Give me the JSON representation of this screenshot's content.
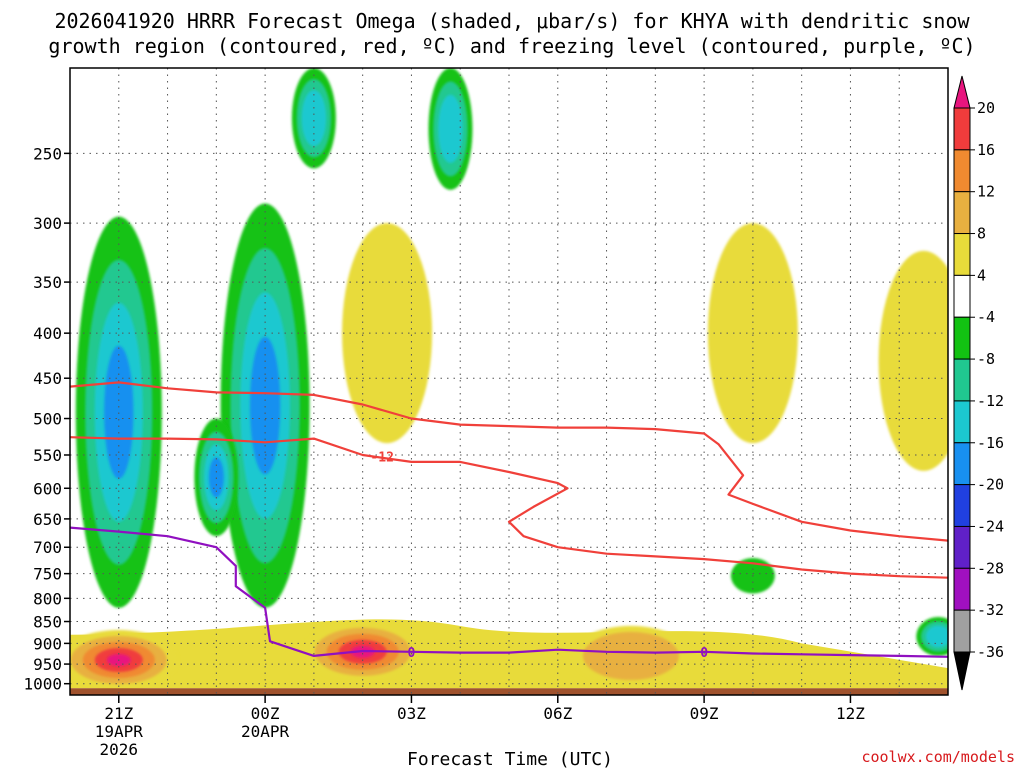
{
  "chart_data": {
    "type": "time-height cross section (filled contours + line contours)",
    "title_line1": "2026041920 HRRR Forecast Omega (shaded, μbar/s) for KHYA with dendritic snow",
    "title_line2": "growth region (contoured, red, ºC) and freezing level (contoured, purple, ºC)",
    "xlabel": "Forecast Time (UTC)",
    "ylabel": "",
    "credit": "coolwx.com/models",
    "x_range_hours": [
      -1,
      17
    ],
    "y_range_hpa": [
      1030,
      200
    ],
    "y_scale": "log-pressure",
    "x_ticks": [
      {
        "hour": 0,
        "label": "21Z",
        "date1": "19APR",
        "date2": "2026"
      },
      {
        "hour": 3,
        "label": "00Z",
        "date1": "20APR",
        "date2": ""
      },
      {
        "hour": 6,
        "label": "03Z",
        "date1": "",
        "date2": ""
      },
      {
        "hour": 9,
        "label": "06Z",
        "date1": "",
        "date2": ""
      },
      {
        "hour": 12,
        "label": "09Z",
        "date1": "",
        "date2": ""
      },
      {
        "hour": 15,
        "label": "12Z",
        "date1": "",
        "date2": ""
      }
    ],
    "y_ticks": [
      250,
      300,
      350,
      400,
      450,
      500,
      550,
      600,
      650,
      700,
      750,
      800,
      850,
      900,
      950,
      1000
    ],
    "colorbar": {
      "labels": [
        "20",
        "16",
        "12",
        "8",
        "4",
        "-4",
        "-8",
        "-12",
        "-16",
        "-20",
        "-24",
        "-28",
        "-32",
        "-36"
      ],
      "bins": [
        {
          "range": ">20",
          "color": "#e8157e"
        },
        {
          "range": "16 to 20",
          "color": "#f03c3c"
        },
        {
          "range": "12 to 16",
          "color": "#f08a30"
        },
        {
          "range": "8 to 12",
          "color": "#e8b040"
        },
        {
          "range": "4 to 8",
          "color": "#e8db3a"
        },
        {
          "range": "-4 to 4",
          "color": "#ffffff"
        },
        {
          "range": "-8 to -4",
          "color": "#12c212"
        },
        {
          "range": "-12 to -8",
          "color": "#20c890"
        },
        {
          "range": "-16 to -12",
          "color": "#1cc8d0"
        },
        {
          "range": "-20 to -16",
          "color": "#1890f0"
        },
        {
          "range": "-24 to -20",
          "color": "#2040e0"
        },
        {
          "range": "-28 to -24",
          "color": "#6020c8"
        },
        {
          "range": "-32 to -28",
          "color": "#a010c0"
        },
        {
          "range": "-36 to -32",
          "color": "#a0a0a0"
        },
        {
          "range": "<-36",
          "color": "#000000"
        }
      ]
    },
    "ground_color": "#a0522d",
    "ground_top_hpa": 1012,
    "omega_ascent_areas": [
      {
        "hour": 0.0,
        "p_bottom": 820,
        "p_top": 295,
        "omega_min": -18
      },
      {
        "hour": 3.0,
        "p_bottom": 820,
        "p_top": 285,
        "omega_min": -16
      },
      {
        "hour": 2.0,
        "p_bottom": 680,
        "p_top": 500,
        "omega_min": -18
      },
      {
        "hour": 4.0,
        "p_bottom": 260,
        "p_top": 200,
        "omega_min": -12
      },
      {
        "hour": 6.8,
        "p_bottom": 275,
        "p_top": 200,
        "omega_min": -14
      },
      {
        "hour": 13.0,
        "p_bottom": 790,
        "p_top": 720,
        "omega_min": -6
      },
      {
        "hour": 16.8,
        "p_bottom": 930,
        "p_top": 840,
        "omega_min": -12
      }
    ],
    "omega_descent_areas": [
      {
        "hour": 0.0,
        "p_center": 940,
        "omega_max": 20
      },
      {
        "hour": 5.0,
        "p_center": 920,
        "omega_max": 22
      },
      {
        "hour": 10.5,
        "p_center": 930,
        "omega_max": 10
      },
      {
        "hour": 5.5,
        "p_center": 400,
        "omega_max": 6
      },
      {
        "hour": 13.0,
        "p_center": 400,
        "omega_max": 6
      },
      {
        "hour": 16.5,
        "p_center": 430,
        "omega_max": 7
      }
    ],
    "dgz_contours": [
      {
        "level": -12,
        "label": "-12",
        "points": [
          [
            -1,
            460
          ],
          [
            0,
            455
          ],
          [
            1,
            462
          ],
          [
            2,
            467
          ],
          [
            3,
            468
          ],
          [
            4,
            470
          ],
          [
            5,
            482
          ],
          [
            6,
            500
          ],
          [
            7,
            508
          ],
          [
            8,
            510
          ],
          [
            9,
            512
          ],
          [
            10,
            512
          ],
          [
            11,
            514
          ],
          [
            12,
            520
          ],
          [
            12.3,
            535
          ],
          [
            12.8,
            580
          ],
          [
            12.5,
            610
          ],
          [
            13,
            625
          ],
          [
            14,
            655
          ],
          [
            15,
            670
          ],
          [
            16,
            680
          ],
          [
            17,
            688
          ]
        ]
      },
      {
        "level": -12,
        "label": "-12",
        "points": [
          [
            -1,
            525
          ],
          [
            0,
            527
          ],
          [
            1,
            527
          ],
          [
            2,
            528
          ],
          [
            3,
            532
          ],
          [
            4,
            527
          ],
          [
            5,
            550
          ],
          [
            6,
            560
          ],
          [
            7,
            560
          ],
          [
            8,
            575
          ],
          [
            9,
            592
          ],
          [
            9.2,
            600
          ],
          [
            8.5,
            630
          ],
          [
            8.0,
            655
          ],
          [
            8.3,
            680
          ],
          [
            9,
            700
          ],
          [
            10,
            712
          ],
          [
            11,
            717
          ],
          [
            12,
            722
          ],
          [
            13,
            730
          ],
          [
            14,
            742
          ],
          [
            15,
            750
          ],
          [
            16,
            755
          ],
          [
            17,
            758
          ]
        ]
      }
    ],
    "freezing_level": {
      "level": 0,
      "label": "0",
      "points": [
        [
          -1,
          665
        ],
        [
          0,
          672
        ],
        [
          1,
          680
        ],
        [
          2,
          700
        ],
        [
          2.4,
          735
        ],
        [
          2.4,
          775
        ],
        [
          3,
          820
        ],
        [
          3.1,
          895
        ],
        [
          4,
          930
        ],
        [
          5,
          918
        ],
        [
          6,
          920
        ],
        [
          7,
          922
        ],
        [
          8,
          922
        ],
        [
          9,
          915
        ],
        [
          10,
          920
        ],
        [
          11,
          922
        ],
        [
          12,
          920
        ],
        [
          13,
          924
        ],
        [
          14,
          926
        ],
        [
          15,
          928
        ],
        [
          16,
          930
        ],
        [
          17,
          932
        ]
      ]
    }
  }
}
